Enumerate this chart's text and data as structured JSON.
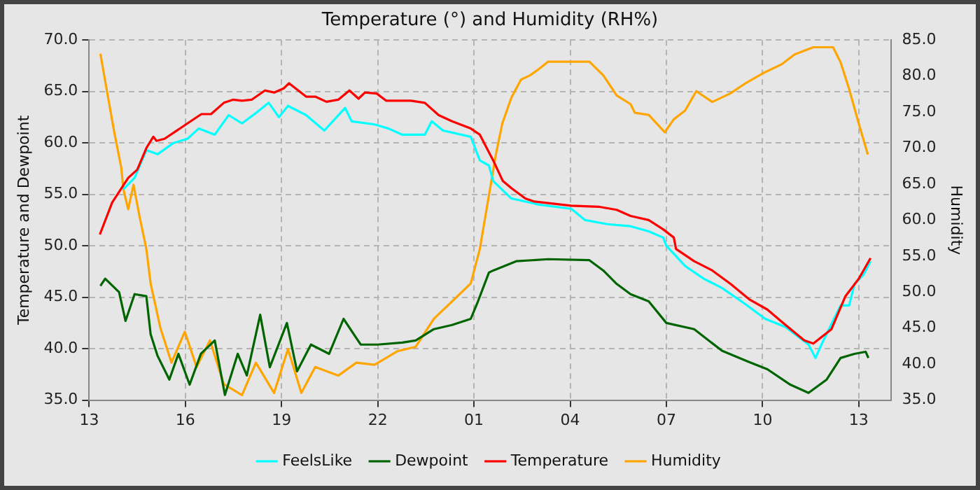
{
  "chart_data": {
    "type": "line",
    "title": "Temperature (°) and Humidity (RH%)",
    "ylabel": "Temperature and Dewpoint",
    "y2label": "Humidity",
    "xlim": [
      "--01-01T13:00",
      "--01-02T14:00"
    ],
    "xticks": [
      {
        "value": "--01-01T13:00",
        "label": "13"
      },
      {
        "value": "--01-01T16:00",
        "label": "16"
      },
      {
        "value": "--01-01T19:00",
        "label": "19"
      },
      {
        "value": "--01-01T22:00",
        "label": "22"
      },
      {
        "value": "--01-02T01:00",
        "label": "01"
      },
      {
        "value": "--01-02T04:00",
        "label": "04"
      },
      {
        "value": "--01-02T07:00",
        "label": "07"
      },
      {
        "value": "--01-02T10:00",
        "label": "10"
      },
      {
        "value": "--01-02T13:00",
        "label": "13"
      }
    ],
    "ylim": [
      35,
      70
    ],
    "yticks": [
      {
        "value": 35,
        "label": "35.0"
      },
      {
        "value": 40,
        "label": "40.0"
      },
      {
        "value": 45,
        "label": "45.0"
      },
      {
        "value": 50,
        "label": "50.0"
      },
      {
        "value": 55,
        "label": "55.0"
      },
      {
        "value": 60,
        "label": "60.0"
      },
      {
        "value": 65,
        "label": "65.0"
      },
      {
        "value": 70,
        "label": "70.0"
      }
    ],
    "y2lim": [
      35,
      85
    ],
    "y2ticks": [
      {
        "value": 35,
        "label": "35.0"
      },
      {
        "value": 40,
        "label": "40.0"
      },
      {
        "value": 45,
        "label": "45.0"
      },
      {
        "value": 50,
        "label": "50.0"
      },
      {
        "value": 55,
        "label": "55.0"
      },
      {
        "value": 60,
        "label": "60.0"
      },
      {
        "value": 65,
        "label": "65.0"
      },
      {
        "value": 70,
        "label": "70.0"
      },
      {
        "value": 75,
        "label": "75.0"
      },
      {
        "value": 80,
        "label": "80.0"
      },
      {
        "value": 85,
        "label": "85.0"
      }
    ],
    "grid": true,
    "legend": "bottom",
    "marker": "none",
    "series": [
      {
        "name": "FeelsLike",
        "color": "#00ffff",
        "x": [
          "--01-01T14:04",
          "--01-01T14:25",
          "--01-01T14:47",
          "--01-01T15:08",
          "--01-01T15:38",
          "--01-01T16:04",
          "--01-01T16:25",
          "--01-01T16:55",
          "--01-01T17:21",
          "--01-01T17:46",
          "--01-01T18:12",
          "--01-01T18:36",
          "--01-01T18:55",
          "--01-01T19:12",
          "--01-01T19:46",
          "--01-01T20:20",
          "--01-01T20:59",
          "--01-01T21:11",
          "--01-01T21:54",
          "--01-01T22:20",
          "--01-01T22:46",
          "--01-01T23:28",
          "--01-01T23:41",
          "--01-02T00:02",
          "--01-02T00:54",
          "--01-02T01:11",
          "--01-02T01:28",
          "--01-02T01:36",
          "--01-02T02:10",
          "--01-02T03:02",
          "--01-02T04:02",
          "--01-02T04:28",
          "--01-02T05:10",
          "--01-02T05:53",
          "--01-02T06:27",
          "--01-02T06:54",
          "--01-02T07:00",
          "--01-02T07:36",
          "--01-02T08:10",
          "--01-02T08:44",
          "--01-02T09:26",
          "--01-02T10:05",
          "--01-02T10:43",
          "--01-02T11:26",
          "--01-02T11:39",
          "--01-02T11:52",
          "--01-02T12:26",
          "--01-02T12:42",
          "--01-02T12:52",
          "--01-02T13:09",
          "--01-02T13:22"
        ],
        "values": [
          55.5,
          56.6,
          59.3,
          58.9,
          60.0,
          60.4,
          61.4,
          60.8,
          62.7,
          61.9,
          62.9,
          63.9,
          62.5,
          63.6,
          62.7,
          61.2,
          63.4,
          62.1,
          61.8,
          61.4,
          60.8,
          60.8,
          62.1,
          61.2,
          60.6,
          58.3,
          57.8,
          56.3,
          54.6,
          54.0,
          53.6,
          52.5,
          52.1,
          51.9,
          51.4,
          50.8,
          50.0,
          48.0,
          46.8,
          45.9,
          44.4,
          42.9,
          42.1,
          40.4,
          39.1,
          40.6,
          44.2,
          44.2,
          46.3,
          47.2,
          48.5
        ]
      },
      {
        "name": "Dewpoint",
        "color": "#006400",
        "x": [
          "--01-01T13:21",
          "--01-01T13:30",
          "--01-01T13:56",
          "--01-01T14:08",
          "--01-01T14:25",
          "--01-01T14:47",
          "--01-01T14:55",
          "--01-01T15:08",
          "--01-01T15:30",
          "--01-01T15:47",
          "--01-01T16:08",
          "--01-01T16:29",
          "--01-01T16:55",
          "--01-01T17:14",
          "--01-01T17:38",
          "--01-01T17:55",
          "--01-01T18:20",
          "--01-01T18:38",
          "--01-01T19:10",
          "--01-01T19:29",
          "--01-01T19:55",
          "--01-01T20:29",
          "--01-01T20:56",
          "--01-01T21:28",
          "--01-01T22:00",
          "--01-01T22:46",
          "--01-01T23:11",
          "--01-01T23:45",
          "--01-02T00:19",
          "--01-02T00:54",
          "--01-02T01:06",
          "--01-02T01:28",
          "--01-02T01:36",
          "--01-02T02:19",
          "--01-02T03:19",
          "--01-02T04:36",
          "--01-02T05:02",
          "--01-02T05:27",
          "--01-02T05:53",
          "--01-02T06:27",
          "--01-02T07:00",
          "--01-02T07:52",
          "--01-02T08:44",
          "--01-02T09:35",
          "--01-02T10:09",
          "--01-02T10:52",
          "--01-02T11:26",
          "--01-02T12:00",
          "--01-02T12:26",
          "--01-02T12:52",
          "--01-02T13:13",
          "--01-02T13:18"
        ],
        "values": [
          46.1,
          46.8,
          45.5,
          42.7,
          45.3,
          45.1,
          41.4,
          39.3,
          37.0,
          39.5,
          36.5,
          39.5,
          40.8,
          35.5,
          39.5,
          37.4,
          43.3,
          38.2,
          42.5,
          37.8,
          40.4,
          39.5,
          42.9,
          40.4,
          40.4,
          40.6,
          40.8,
          41.9,
          42.3,
          42.9,
          44.4,
          47.4,
          47.6,
          48.5,
          48.7,
          48.6,
          47.6,
          46.3,
          45.3,
          44.6,
          42.5,
          41.9,
          39.8,
          38.7,
          38.0,
          36.5,
          35.7,
          37.0,
          39.1,
          39.5,
          39.7,
          39.1
        ]
      },
      {
        "name": "Temperature",
        "color": "#ff0000",
        "x": [
          "--01-01T13:20",
          "--01-01T13:43",
          "--01-01T14:13",
          "--01-01T14:30",
          "--01-01T14:47",
          "--01-01T15:00",
          "--01-01T15:06",
          "--01-01T15:21",
          "--01-01T16:04",
          "--01-01T16:30",
          "--01-01T16:48",
          "--01-01T17:12",
          "--01-01T17:29",
          "--01-01T17:46",
          "--01-01T18:04",
          "--01-01T18:29",
          "--01-01T18:46",
          "--01-01T19:04",
          "--01-01T19:14",
          "--01-01T19:46",
          "--01-01T20:03",
          "--01-01T20:24",
          "--01-01T20:46",
          "--01-01T21:07",
          "--01-01T21:24",
          "--01-01T21:36",
          "--01-01T21:58",
          "--01-01T22:16",
          "--01-01T23:02",
          "--01-01T23:28",
          "--01-01T23:54",
          "--01-02T00:19",
          "--01-02T00:54",
          "--01-02T01:11",
          "--01-02T01:28",
          "--01-02T01:36",
          "--01-02T01:54",
          "--01-02T02:10",
          "--01-02T02:36",
          "--01-02T02:53",
          "--01-02T04:02",
          "--01-02T04:53",
          "--01-02T05:27",
          "--01-02T05:53",
          "--01-02T06:27",
          "--01-02T06:54",
          "--01-02T07:14",
          "--01-02T07:18",
          "--01-02T07:52",
          "--01-02T08:26",
          "--01-02T09:00",
          "--01-02T09:35",
          "--01-02T10:09",
          "--01-02T10:43",
          "--01-02T11:18",
          "--01-02T11:35",
          "--01-02T12:09",
          "--01-02T12:35",
          "--01-02T13:00",
          "--01-02T13:22"
        ],
        "values": [
          51.1,
          54.2,
          56.6,
          57.4,
          59.5,
          60.6,
          60.2,
          60.4,
          61.9,
          62.8,
          62.8,
          63.9,
          64.2,
          64.1,
          64.2,
          65.1,
          64.9,
          65.3,
          65.8,
          64.5,
          64.5,
          64.0,
          64.2,
          65.1,
          64.3,
          64.9,
          64.8,
          64.1,
          64.1,
          63.9,
          62.7,
          62.1,
          61.4,
          60.8,
          59.1,
          58.3,
          56.3,
          55.6,
          54.6,
          54.3,
          53.9,
          53.8,
          53.5,
          52.9,
          52.5,
          51.6,
          50.8,
          49.7,
          48.5,
          47.6,
          46.3,
          44.8,
          43.8,
          42.3,
          40.8,
          40.5,
          41.9,
          45.1,
          46.8,
          48.8
        ]
      },
      {
        "name": "Humidity",
        "color": "#ffa500",
        "axis": "y2",
        "x": [
          "--01-01T13:21",
          "--01-01T13:34",
          "--01-01T13:47",
          "--01-01T14:00",
          "--01-01T14:04",
          "--01-01T14:13",
          "--01-01T14:23",
          "--01-01T14:34",
          "--01-01T14:47",
          "--01-01T14:55",
          "--01-01T15:13",
          "--01-01T15:34",
          "--01-01T15:59",
          "--01-01T16:21",
          "--01-01T16:46",
          "--01-01T17:12",
          "--01-01T17:46",
          "--01-01T18:12",
          "--01-01T18:46",
          "--01-01T19:12",
          "--01-01T19:37",
          "--01-01T20:03",
          "--01-01T20:46",
          "--01-01T21:20",
          "--01-01T21:54",
          "--01-01T22:37",
          "--01-01T23:11",
          "--01-01T23:45",
          "--01-02T00:19",
          "--01-02T00:54",
          "--01-02T01:11",
          "--01-02T01:41",
          "--01-02T01:53",
          "--01-02T02:10",
          "--01-02T02:28",
          "--01-02T02:45",
          "--01-02T03:02",
          "--01-02T03:19",
          "--01-02T04:36",
          "--01-02T05:02",
          "--01-02T05:27",
          "--01-02T05:53",
          "--01-02T06:01",
          "--01-02T06:27",
          "--01-02T06:57",
          "--01-02T07:14",
          "--01-02T07:35",
          "--01-02T07:56",
          "--01-02T08:26",
          "--01-02T09:00",
          "--01-02T09:26",
          "--01-02T10:01",
          "--01-02T10:35",
          "--01-02T11:00",
          "--01-02T11:35",
          "--01-02T12:12",
          "--01-02T12:26",
          "--01-02T12:42",
          "--01-02T13:00",
          "--01-02T13:17"
        ],
        "values": [
          83.1,
          77.6,
          72.2,
          67.3,
          64.3,
          61.5,
          64.9,
          60.6,
          56.0,
          51.2,
          45.1,
          40.2,
          44.5,
          39.6,
          43.3,
          37.2,
          35.7,
          40.2,
          36.0,
          42.1,
          36.0,
          39.6,
          38.4,
          40.2,
          39.9,
          41.8,
          42.4,
          46.3,
          48.7,
          51.2,
          56.0,
          69.1,
          73.4,
          77.0,
          79.5,
          80.1,
          81.0,
          82.0,
          82.0,
          80.1,
          77.3,
          76.1,
          74.9,
          74.6,
          72.2,
          74.0,
          75.2,
          77.9,
          76.4,
          77.6,
          78.9,
          80.4,
          81.6,
          83.0,
          84.0,
          84.0,
          81.9,
          78.2,
          73.4,
          69.1
        ]
      }
    ]
  }
}
